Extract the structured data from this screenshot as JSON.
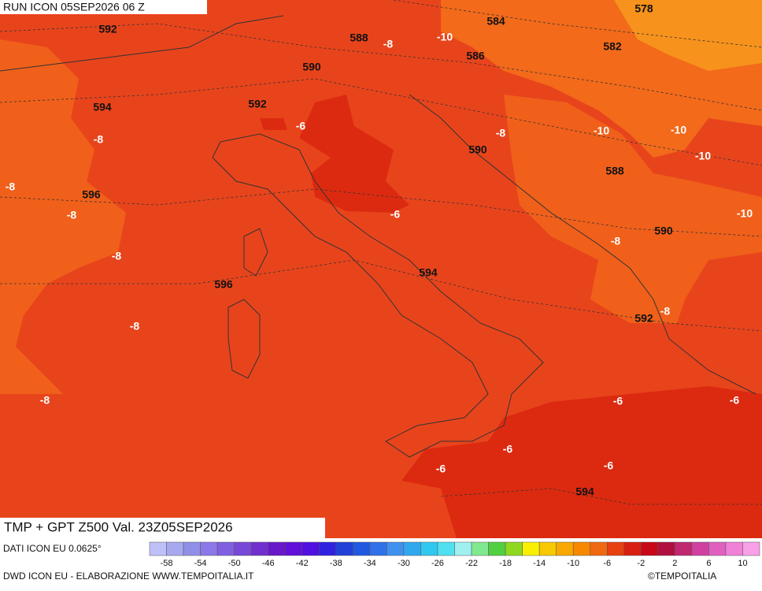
{
  "header": {
    "run": "RUN ICON 05SEP2026 06 Z"
  },
  "map": {
    "contour_labels": [
      "578",
      "584",
      "-10",
      "592",
      "588",
      "-8",
      "582",
      "586",
      "590",
      "592",
      "594",
      "-6",
      "-8",
      "-10",
      "-10",
      "-10",
      "-8",
      "590",
      "588",
      "-8",
      "596",
      "-8",
      "-6",
      "-10",
      "590",
      "-8",
      "-8",
      "594",
      "596",
      "-8",
      "592",
      "-8",
      "-8",
      "-6",
      "-6",
      "-6",
      "-6",
      "-6",
      "594"
    ]
  },
  "footer": {
    "title": "TMP + GPT Z500 Val. 23Z05SEP2026",
    "source": "DATI ICON EU 0.0625°",
    "credits": "DWD ICON EU - ELABORAZIONE WWW.TEMPOITALIA.IT",
    "copyright": "©TEMPOITALIA"
  },
  "colorbar": {
    "labels": [
      "-58",
      "-54",
      "-50",
      "-46",
      "-42",
      "-38",
      "-34",
      "-30",
      "-26",
      "-22",
      "-18",
      "-14",
      "-10",
      "-6",
      "-2",
      "2",
      "6",
      "10"
    ],
    "colors": [
      "#c0c0f8",
      "#a8a8f0",
      "#9090e8",
      "#8c78e8",
      "#8060e0",
      "#7848d8",
      "#7030d0",
      "#6818c8",
      "#6010d8",
      "#5010e0",
      "#3020e0",
      "#2040d8",
      "#2058e0",
      "#3070e8",
      "#4090f0",
      "#30a8f0",
      "#30c8f0",
      "#50e0f0",
      "#a0f0f0",
      "#80e890",
      "#50d040",
      "#90d820",
      "#f8f000",
      "#f8c800",
      "#f8a800",
      "#f88800",
      "#f06810",
      "#e84010",
      "#d82010",
      "#c80818",
      "#b01040",
      "#c02870",
      "#d040a0",
      "#e060c0",
      "#f080d8",
      "#f8a0e8"
    ]
  }
}
